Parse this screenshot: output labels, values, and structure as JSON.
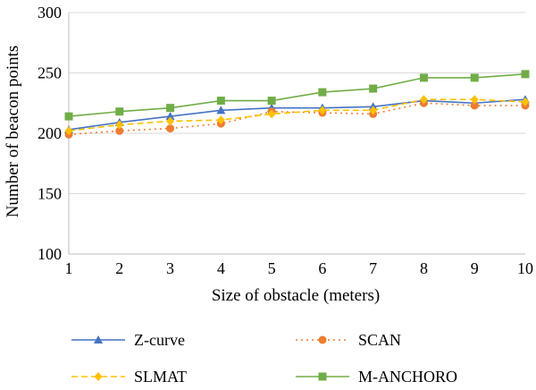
{
  "chart_data": {
    "type": "line",
    "title": "",
    "xlabel": "Size of obstacle (meters)",
    "ylabel": "Number of beacon points",
    "x": [
      1,
      2,
      3,
      4,
      5,
      6,
      7,
      8,
      9,
      10
    ],
    "xlim": [
      1,
      10
    ],
    "ylim": [
      100,
      300
    ],
    "yticks": [
      100,
      150,
      200,
      250,
      300
    ],
    "grid": "horizontal",
    "legend_position": "bottom",
    "series": [
      {
        "name": "Z-curve",
        "values": [
          203,
          209,
          214,
          219,
          221,
          221,
          222,
          227,
          225,
          228
        ],
        "color": "#4472C4",
        "marker": "triangle",
        "dash": "solid"
      },
      {
        "name": "SCAN",
        "values": [
          199,
          202,
          204,
          208,
          218,
          217,
          216,
          225,
          223,
          223
        ],
        "color": "#ED7D31",
        "marker": "circle",
        "dash": "dotted"
      },
      {
        "name": "SLMAT",
        "values": [
          202,
          207,
          210,
          211,
          216,
          219,
          219,
          228,
          228,
          226
        ],
        "color": "#FFC000",
        "marker": "diamond",
        "dash": "dashed"
      },
      {
        "name": "M-ANCHORO",
        "values": [
          214,
          218,
          221,
          227,
          227,
          234,
          237,
          246,
          246,
          249
        ],
        "color": "#70AD47",
        "marker": "square",
        "dash": "solid"
      }
    ]
  }
}
